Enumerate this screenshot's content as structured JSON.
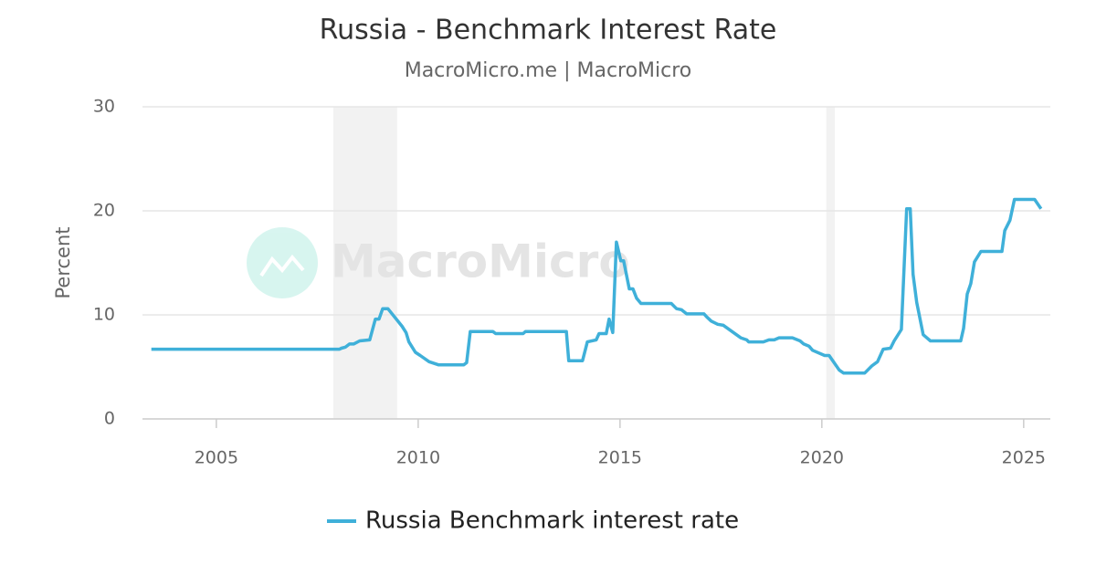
{
  "chart_data": {
    "type": "line",
    "title": "Russia - Benchmark Interest Rate",
    "subtitle": "MacroMicro.me | MacroMicro",
    "watermark": "MacroMicro",
    "y_label": "Percent",
    "xlim": [
      2003.17,
      2025.66
    ],
    "xticks": [
      2005,
      2010,
      2015,
      2020,
      2025
    ],
    "ylim": [
      0,
      30
    ],
    "yticks": [
      0,
      10,
      20,
      30
    ],
    "grid": true,
    "legend": "bottom",
    "shaded": [
      [
        2007.9,
        2009.48
      ],
      [
        2020.11,
        2020.32
      ]
    ],
    "x": [
      2003.39,
      2008.05,
      2008.1,
      2008.2,
      2008.3,
      2008.4,
      2008.55,
      2008.8,
      2008.94,
      2009.03,
      2009.12,
      2009.25,
      2009.6,
      2009.7,
      2009.77,
      2009.93,
      2010.05,
      2010.27,
      2010.5,
      2011.13,
      2011.2,
      2011.29,
      2011.85,
      2011.92,
      2012.6,
      2012.66,
      2013.67,
      2013.73,
      2014.07,
      2014.19,
      2014.41,
      2014.48,
      2014.66,
      2014.73,
      2014.82,
      2014.91,
      2015.02,
      2015.09,
      2015.23,
      2015.32,
      2015.41,
      2015.52,
      2016.27,
      2016.4,
      2016.52,
      2016.65,
      2017.08,
      2017.15,
      2017.26,
      2017.42,
      2017.56,
      2017.99,
      2018.14,
      2018.19,
      2018.55,
      2018.69,
      2018.82,
      2018.94,
      2019.27,
      2019.46,
      2019.55,
      2019.68,
      2019.77,
      2020.07,
      2020.18,
      2020.43,
      2020.54,
      2021.06,
      2021.24,
      2021.38,
      2021.52,
      2021.7,
      2021.79,
      2021.97,
      2022.1,
      2022.19,
      2022.26,
      2022.35,
      2022.51,
      2022.69,
      2023.44,
      2023.51,
      2023.6,
      2023.69,
      2023.78,
      2023.94,
      2024.46,
      2024.53,
      2024.66,
      2024.77,
      2025.27,
      2025.43
    ],
    "series": [
      {
        "name": "Russia Benchmark interest rate",
        "color": "#3fb0d9",
        "values": [
          6.7,
          6.7,
          6.8,
          6.9,
          7.2,
          7.2,
          7.5,
          7.6,
          9.6,
          9.6,
          10.6,
          10.6,
          8.9,
          8.3,
          7.4,
          6.4,
          6.1,
          5.5,
          5.2,
          5.2,
          5.4,
          8.4,
          8.4,
          8.2,
          8.2,
          8.4,
          8.4,
          5.6,
          5.6,
          7.4,
          7.6,
          8.2,
          8.2,
          9.6,
          8.3,
          17.0,
          15.2,
          15.2,
          12.5,
          12.5,
          11.6,
          11.1,
          11.1,
          10.6,
          10.5,
          10.1,
          10.1,
          9.8,
          9.4,
          9.1,
          9.0,
          7.8,
          7.6,
          7.4,
          7.4,
          7.6,
          7.6,
          7.8,
          7.8,
          7.5,
          7.2,
          7.0,
          6.6,
          6.1,
          6.1,
          4.7,
          4.4,
          4.4,
          5.1,
          5.5,
          6.7,
          6.8,
          7.5,
          8.6,
          20.2,
          20.2,
          13.9,
          11.2,
          8.1,
          7.5,
          7.5,
          8.7,
          12.0,
          13.0,
          15.1,
          16.1,
          16.1,
          18.1,
          19.1,
          21.1,
          21.1,
          20.2
        ]
      }
    ]
  }
}
